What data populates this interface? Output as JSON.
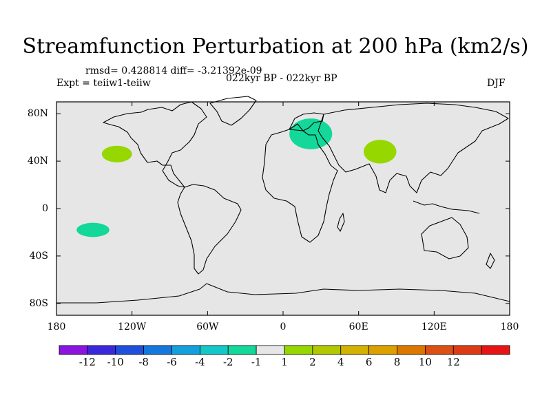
{
  "title": "Streamfunction Perturbation at 200 hPa (km2/s)",
  "stats_text": "rmsd= 0.428814  diff= -3.21392e-09",
  "expt_text": "Expt = teiiw1-teiiw",
  "period_text": "022kyr BP - 022kyr BP",
  "season_text": "DJF",
  "map": {
    "projection": "cylindrical-equidistant",
    "lon_range": [
      -180,
      180
    ],
    "lat_range": [
      -90,
      90
    ],
    "background_color": "#e6e6e6",
    "coastline_color": "#000000",
    "lat_ticks": [
      {
        "value": 80,
        "label": "80N"
      },
      {
        "value": 40,
        "label": "40N"
      },
      {
        "value": 0,
        "label": "0"
      },
      {
        "value": -40,
        "label": "40S"
      },
      {
        "value": -80,
        "label": "80S"
      }
    ],
    "lon_ticks": [
      {
        "value": -180,
        "label": "180"
      },
      {
        "value": -120,
        "label": "120W"
      },
      {
        "value": -60,
        "label": "60W"
      },
      {
        "value": 0,
        "label": "0"
      },
      {
        "value": 60,
        "label": "60E"
      },
      {
        "value": 120,
        "label": "120E"
      },
      {
        "value": 180,
        "label": "180"
      }
    ],
    "anomalies": [
      {
        "id": "scandinavia-anomaly",
        "lon": 22,
        "lat": 63,
        "rlon": 17,
        "rlat": 13,
        "color": "#13d89a"
      },
      {
        "id": "central-asia-anomaly",
        "lon": 77,
        "lat": 48,
        "rlon": 13,
        "rlat": 10,
        "color": "#96d700"
      },
      {
        "id": "north-pacific-anomaly",
        "lon": -132,
        "lat": 46,
        "rlon": 12,
        "rlat": 7,
        "color": "#96d700"
      },
      {
        "id": "south-pacific-anomaly",
        "lon": -151,
        "lat": -18,
        "rlon": 13,
        "rlat": 6,
        "color": "#13d89a"
      }
    ]
  },
  "colorbar": {
    "colors": [
      "#8b14de",
      "#3c28dc",
      "#1e50dc",
      "#1478dc",
      "#14a0dc",
      "#14c8c8",
      "#13d89a",
      "#e6e6e6",
      "#96d700",
      "#b4c800",
      "#d2b400",
      "#dca000",
      "#dc7800",
      "#dc5014",
      "#dc3c14",
      "#e61414"
    ],
    "labels": [
      "-12",
      "-10",
      "-8",
      "-6",
      "-4",
      "-2",
      "-1",
      "1",
      "2",
      "4",
      "6",
      "8",
      "10",
      "12"
    ]
  }
}
